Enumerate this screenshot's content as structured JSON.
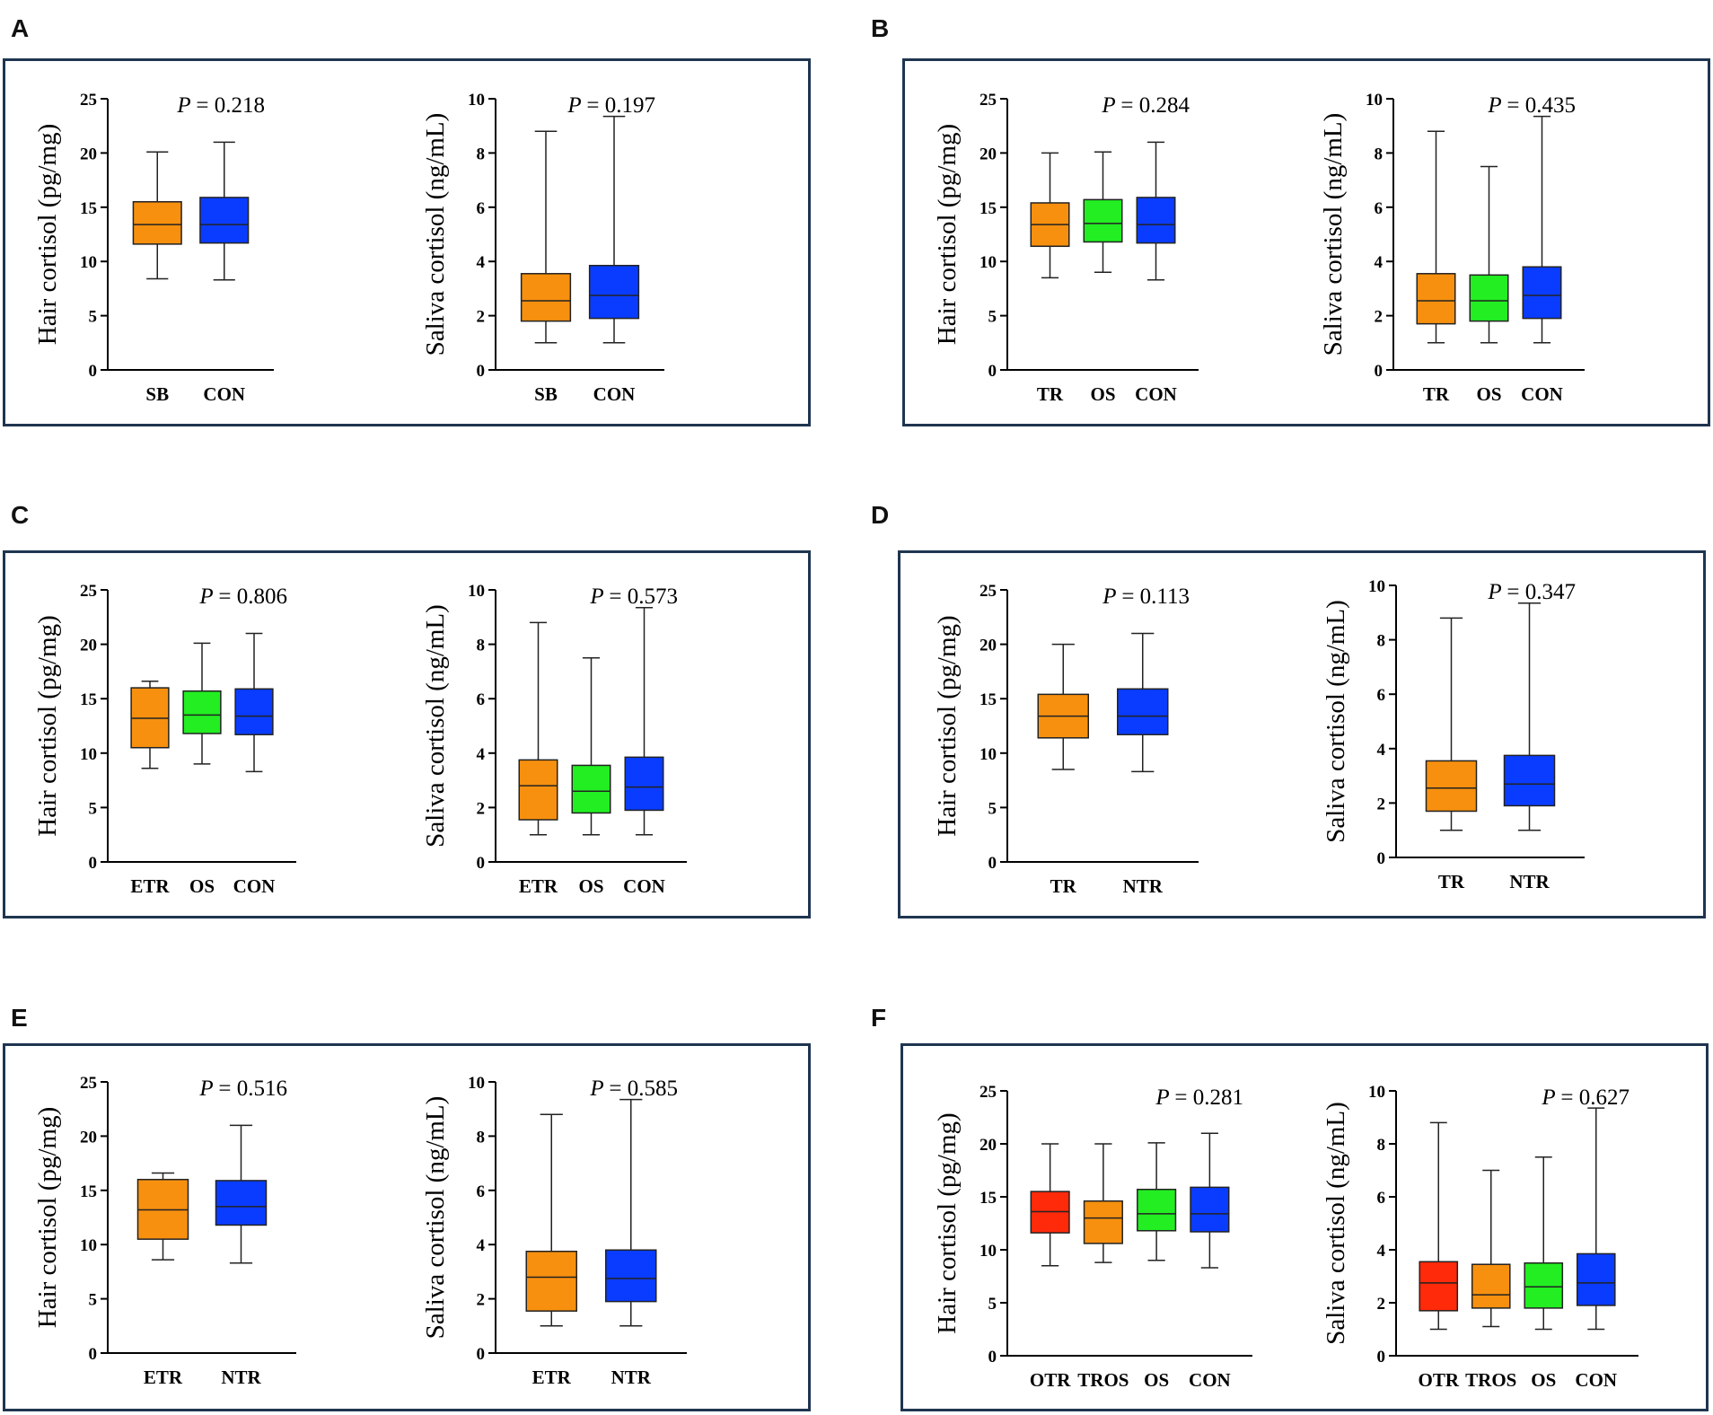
{
  "colors": {
    "SB": "#F7900F",
    "CON": "#0A3CFF",
    "TR": "#F7900F",
    "OS": "#22EE22",
    "ETR": "#F7900F",
    "NTR": "#0A3CFF",
    "OTR": "#FF2A0A",
    "TROS": "#F7900F",
    "frame": "#1f3550"
  },
  "panels": [
    {
      "letter": "A",
      "charts": [
        {
          "type": "box",
          "ylabel": "Hair cortisol (pg/mg)",
          "ylim": [
            0,
            25
          ],
          "yticks": [
            0,
            5,
            10,
            15,
            20,
            25
          ],
          "p_prefix": "P",
          "p_value": "= 0.218",
          "groups": [
            {
              "name": "SB",
              "min": 8.4,
              "q1": 11.6,
              "median": 13.4,
              "q3": 15.5,
              "max": 20.1
            },
            {
              "name": "CON",
              "min": 8.3,
              "q1": 11.7,
              "median": 13.4,
              "q3": 15.9,
              "max": 21.0
            }
          ]
        },
        {
          "type": "box",
          "ylabel": "Saliva cortisol (ng/mL)",
          "ylim": [
            0,
            10
          ],
          "yticks": [
            0,
            2,
            4,
            6,
            8,
            10
          ],
          "p_prefix": "P",
          "p_value": "= 0.197",
          "groups": [
            {
              "name": "SB",
              "min": 1.0,
              "q1": 1.8,
              "median": 2.55,
              "q3": 3.55,
              "max": 8.8
            },
            {
              "name": "CON",
              "min": 1.0,
              "q1": 1.9,
              "median": 2.75,
              "q3": 3.85,
              "max": 9.35
            }
          ]
        }
      ]
    },
    {
      "letter": "B",
      "charts": [
        {
          "type": "box",
          "ylabel": "Hair cortisol (pg/mg)",
          "ylim": [
            0,
            25
          ],
          "yticks": [
            0,
            5,
            10,
            15,
            20,
            25
          ],
          "p_prefix": "P",
          "p_value": "= 0.284",
          "groups": [
            {
              "name": "TR",
              "min": 8.5,
              "q1": 11.4,
              "median": 13.4,
              "q3": 15.4,
              "max": 20.0
            },
            {
              "name": "OS",
              "min": 9.0,
              "q1": 11.8,
              "median": 13.5,
              "q3": 15.7,
              "max": 20.1
            },
            {
              "name": "CON",
              "min": 8.3,
              "q1": 11.7,
              "median": 13.4,
              "q3": 15.9,
              "max": 21.0
            }
          ]
        },
        {
          "type": "box",
          "ylabel": "Saliva cortisol (ng/mL)",
          "ylim": [
            0,
            10
          ],
          "yticks": [
            0,
            2,
            4,
            6,
            8,
            10
          ],
          "p_prefix": "P",
          "p_value": "= 0.435",
          "groups": [
            {
              "name": "TR",
              "min": 1.0,
              "q1": 1.7,
              "median": 2.55,
              "q3": 3.55,
              "max": 8.8
            },
            {
              "name": "OS",
              "min": 1.0,
              "q1": 1.8,
              "median": 2.55,
              "q3": 3.5,
              "max": 7.5
            },
            {
              "name": "CON",
              "min": 1.0,
              "q1": 1.9,
              "median": 2.75,
              "q3": 3.8,
              "max": 9.35
            }
          ]
        }
      ]
    },
    {
      "letter": "C",
      "charts": [
        {
          "type": "box",
          "ylabel": "Hair cortisol (pg/mg)",
          "ylim": [
            0,
            25
          ],
          "yticks": [
            0,
            5,
            10,
            15,
            20,
            25
          ],
          "p_prefix": "P",
          "p_value": "= 0.806",
          "groups": [
            {
              "name": "ETR",
              "min": 8.6,
              "q1": 10.5,
              "median": 13.2,
              "q3": 16.0,
              "max": 16.6
            },
            {
              "name": "OS",
              "min": 9.0,
              "q1": 11.8,
              "median": 13.5,
              "q3": 15.7,
              "max": 20.1
            },
            {
              "name": "CON",
              "min": 8.3,
              "q1": 11.7,
              "median": 13.4,
              "q3": 15.9,
              "max": 21.0
            }
          ]
        },
        {
          "type": "box",
          "ylabel": "Saliva cortisol (ng/mL)",
          "ylim": [
            0,
            10
          ],
          "yticks": [
            0,
            2,
            4,
            6,
            8,
            10
          ],
          "p_prefix": "P",
          "p_value": "= 0.573",
          "groups": [
            {
              "name": "ETR",
              "min": 1.0,
              "q1": 1.55,
              "median": 2.8,
              "q3": 3.75,
              "max": 8.8
            },
            {
              "name": "OS",
              "min": 1.0,
              "q1": 1.8,
              "median": 2.6,
              "q3": 3.55,
              "max": 7.5
            },
            {
              "name": "CON",
              "min": 1.0,
              "q1": 1.9,
              "median": 2.75,
              "q3": 3.85,
              "max": 9.35
            }
          ]
        }
      ]
    },
    {
      "letter": "D",
      "charts": [
        {
          "type": "box",
          "ylabel": "Hair cortisol (pg/mg)",
          "ylim": [
            0,
            25
          ],
          "yticks": [
            0,
            5,
            10,
            15,
            20,
            25
          ],
          "p_prefix": "P",
          "p_value": "= 0.113",
          "groups": [
            {
              "name": "TR",
              "min": 8.5,
              "q1": 11.4,
              "median": 13.4,
              "q3": 15.4,
              "max": 20.0
            },
            {
              "name": "NTR",
              "min": 8.3,
              "q1": 11.7,
              "median": 13.4,
              "q3": 15.9,
              "max": 21.0
            }
          ]
        },
        {
          "type": "box",
          "ylabel": "Saliva cortisol (ng/mL)",
          "ylim": [
            0,
            10
          ],
          "yticks": [
            0,
            2,
            4,
            6,
            8,
            10
          ],
          "p_prefix": "P",
          "p_value": "= 0.347",
          "groups": [
            {
              "name": "TR",
              "min": 1.0,
              "q1": 1.7,
              "median": 2.55,
              "q3": 3.55,
              "max": 8.8
            },
            {
              "name": "NTR",
              "min": 1.0,
              "q1": 1.9,
              "median": 2.7,
              "q3": 3.75,
              "max": 9.35
            }
          ]
        }
      ]
    },
    {
      "letter": "E",
      "charts": [
        {
          "type": "box",
          "ylabel": "Hair cortisol (pg/mg)",
          "ylim": [
            0,
            25
          ],
          "yticks": [
            0,
            5,
            10,
            15,
            20,
            25
          ],
          "p_prefix": "P",
          "p_value": "= 0.516",
          "groups": [
            {
              "name": "ETR",
              "min": 8.6,
              "q1": 10.5,
              "median": 13.2,
              "q3": 16.0,
              "max": 16.6
            },
            {
              "name": "NTR",
              "min": 8.3,
              "q1": 11.8,
              "median": 13.5,
              "q3": 15.9,
              "max": 21.0
            }
          ]
        },
        {
          "type": "box",
          "ylabel": "Saliva cortisol (ng/mL)",
          "ylim": [
            0,
            10
          ],
          "yticks": [
            0,
            2,
            4,
            6,
            8,
            10
          ],
          "p_prefix": "P",
          "p_value": "= 0.585",
          "groups": [
            {
              "name": "ETR",
              "min": 1.0,
              "q1": 1.55,
              "median": 2.8,
              "q3": 3.75,
              "max": 8.8
            },
            {
              "name": "NTR",
              "min": 1.0,
              "q1": 1.9,
              "median": 2.75,
              "q3": 3.8,
              "max": 9.35
            }
          ]
        }
      ]
    },
    {
      "letter": "F",
      "charts": [
        {
          "type": "box",
          "ylabel": "Hair cortisol (pg/mg)",
          "ylim": [
            0,
            25
          ],
          "yticks": [
            0,
            5,
            10,
            15,
            20,
            25
          ],
          "p_prefix": "P",
          "p_value": "= 0.281",
          "groups": [
            {
              "name": "OTR",
              "min": 8.5,
              "q1": 11.6,
              "median": 13.6,
              "q3": 15.5,
              "max": 20.0
            },
            {
              "name": "TROS",
              "min": 8.8,
              "q1": 10.6,
              "median": 13.0,
              "q3": 14.6,
              "max": 20.0
            },
            {
              "name": "OS",
              "min": 9.0,
              "q1": 11.8,
              "median": 13.4,
              "q3": 15.7,
              "max": 20.1
            },
            {
              "name": "CON",
              "min": 8.3,
              "q1": 11.7,
              "median": 13.4,
              "q3": 15.9,
              "max": 21.0
            }
          ]
        },
        {
          "type": "box",
          "ylabel": "Saliva cortisol (ng/mL)",
          "ylim": [
            0,
            10
          ],
          "yticks": [
            0,
            2,
            4,
            6,
            8,
            10
          ],
          "p_prefix": "P",
          "p_value": "= 0.627",
          "groups": [
            {
              "name": "OTR",
              "min": 1.0,
              "q1": 1.7,
              "median": 2.75,
              "q3": 3.55,
              "max": 8.8
            },
            {
              "name": "TROS",
              "min": 1.1,
              "q1": 1.8,
              "median": 2.3,
              "q3": 3.45,
              "max": 7.0
            },
            {
              "name": "OS",
              "min": 1.0,
              "q1": 1.8,
              "median": 2.6,
              "q3": 3.5,
              "max": 7.5
            },
            {
              "name": "CON",
              "min": 1.0,
              "q1": 1.9,
              "median": 2.75,
              "q3": 3.85,
              "max": 9.35
            }
          ]
        }
      ]
    }
  ]
}
